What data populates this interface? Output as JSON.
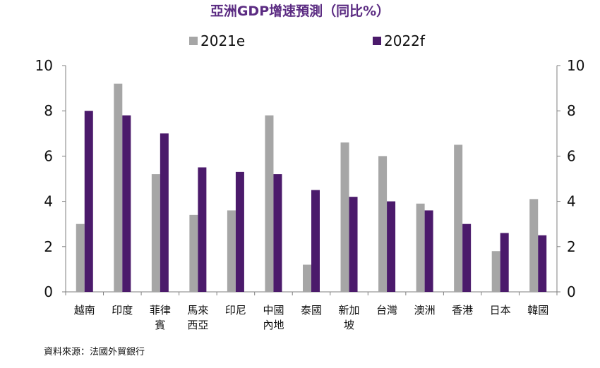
{
  "chart_data": {
    "type": "bar",
    "title": "亞洲GDP增速預測（同比%）",
    "categories": [
      [
        "越南"
      ],
      [
        "印度"
      ],
      [
        "菲律",
        "賓"
      ],
      [
        "馬來",
        "西亞"
      ],
      [
        "印尼"
      ],
      [
        "中國",
        "內地"
      ],
      [
        "泰國"
      ],
      [
        "新加",
        "坡"
      ],
      [
        "台灣"
      ],
      [
        "澳洲"
      ],
      [
        "香港"
      ],
      [
        "日本"
      ],
      [
        "韓國"
      ]
    ],
    "series": [
      {
        "name": "2021e",
        "color": "#a6a6a6",
        "values": [
          3.0,
          9.2,
          5.2,
          3.4,
          3.6,
          7.8,
          1.2,
          6.6,
          6.0,
          3.9,
          6.5,
          1.8,
          4.1
        ]
      },
      {
        "name": "2022f",
        "color": "#4b1a6b",
        "values": [
          8.0,
          7.8,
          7.0,
          5.5,
          5.3,
          5.2,
          4.5,
          4.2,
          4.0,
          3.6,
          3.0,
          2.6,
          2.5
        ]
      }
    ],
    "ylim": [
      0,
      10
    ],
    "yticks": [
      "0",
      "2",
      "4",
      "6",
      "8",
      "10"
    ],
    "secondary_yticks": [
      "0",
      "2",
      "4",
      "6",
      "8",
      "10"
    ],
    "legend_position": "top-center",
    "grid": false,
    "source": "資料來源：法國外貿銀行"
  }
}
